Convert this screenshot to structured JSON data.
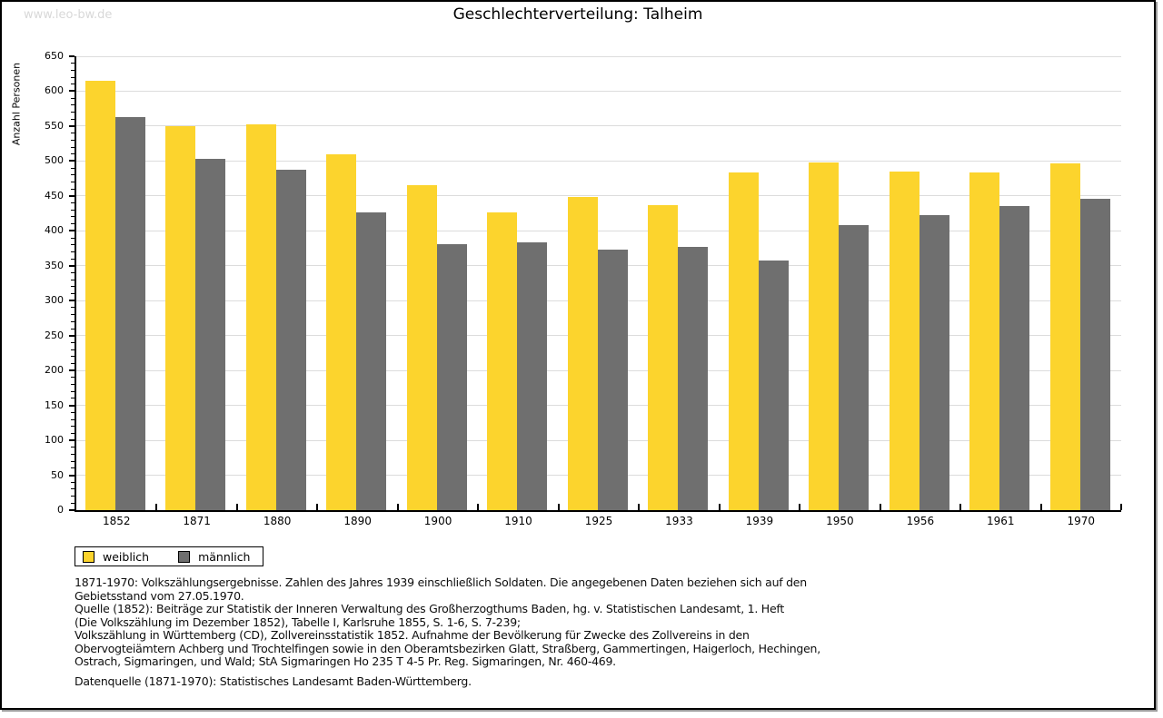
{
  "watermark": "www.leo-bw.de",
  "title": "Geschlechterverteilung: Talheim",
  "chart_data": {
    "type": "bar",
    "title": "Geschlechterverteilung: Talheim",
    "xlabel": "",
    "ylabel": "Anzahl Personen",
    "ylim": [
      0,
      650
    ],
    "ytick_step": 50,
    "ytick_minor_step": 10,
    "grid": true,
    "legend_position": "bottom-left",
    "categories": [
      "1852",
      "1871",
      "1880",
      "1890",
      "1900",
      "1910",
      "1925",
      "1933",
      "1939",
      "1950",
      "1956",
      "1961",
      "1970"
    ],
    "series": [
      {
        "name": "weiblich",
        "color": "#FCD42D",
        "values": [
          615,
          550,
          552,
          509,
          466,
          427,
          448,
          437,
          483,
          498,
          485,
          483,
          497
        ]
      },
      {
        "name": "männlich",
        "color": "#6F6F6F",
        "values": [
          563,
          503,
          488,
          427,
          381,
          383,
          373,
          377,
          358,
          408,
          423,
          435,
          446
        ]
      }
    ]
  },
  "legend": {
    "items": [
      {
        "label": "weiblich",
        "color": "#FCD42D"
      },
      {
        "label": "männlich",
        "color": "#6F6F6F"
      }
    ]
  },
  "footnotes": {
    "lines": [
      "1871-1970: Volkszählungsergebnisse. Zahlen des Jahres 1939 einschließlich Soldaten. Die angegebenen Daten beziehen sich auf den",
      "Gebietsstand vom 27.05.1970.",
      "Quelle (1852): Beiträge zur Statistik der Inneren Verwaltung des Großherzogthums Baden, hg. v. Statistischen Landesamt, 1. Heft",
      "(Die Volkszählung im Dezember 1852), Tabelle I, Karlsruhe 1855, S. 1-6, S. 7-239;",
      "Volkszählung in Württemberg (CD), Zollvereinsstatistik 1852. Aufnahme der Bevölkerung für Zwecke des Zollvereins in den",
      "Obervogteiämtern Achberg und Trochtelfingen sowie in den Oberamtsbezirken Glatt, Straßberg, Gammertingen, Haigerloch, Hechingen,",
      "Ostrach, Sigmaringen, und Wald; StA Sigmaringen Ho 235 T 4-5 Pr. Reg. Sigmaringen, Nr. 460-469."
    ],
    "datasource": "Datenquelle (1871-1970): Statistisches Landesamt Baden-Württemberg."
  },
  "colors": {
    "female_bar": "#FCD42D",
    "male_bar": "#6F6F6F",
    "gridline": "#dcdcdc",
    "watermark": "#d8d8d8",
    "axis": "#000000"
  }
}
